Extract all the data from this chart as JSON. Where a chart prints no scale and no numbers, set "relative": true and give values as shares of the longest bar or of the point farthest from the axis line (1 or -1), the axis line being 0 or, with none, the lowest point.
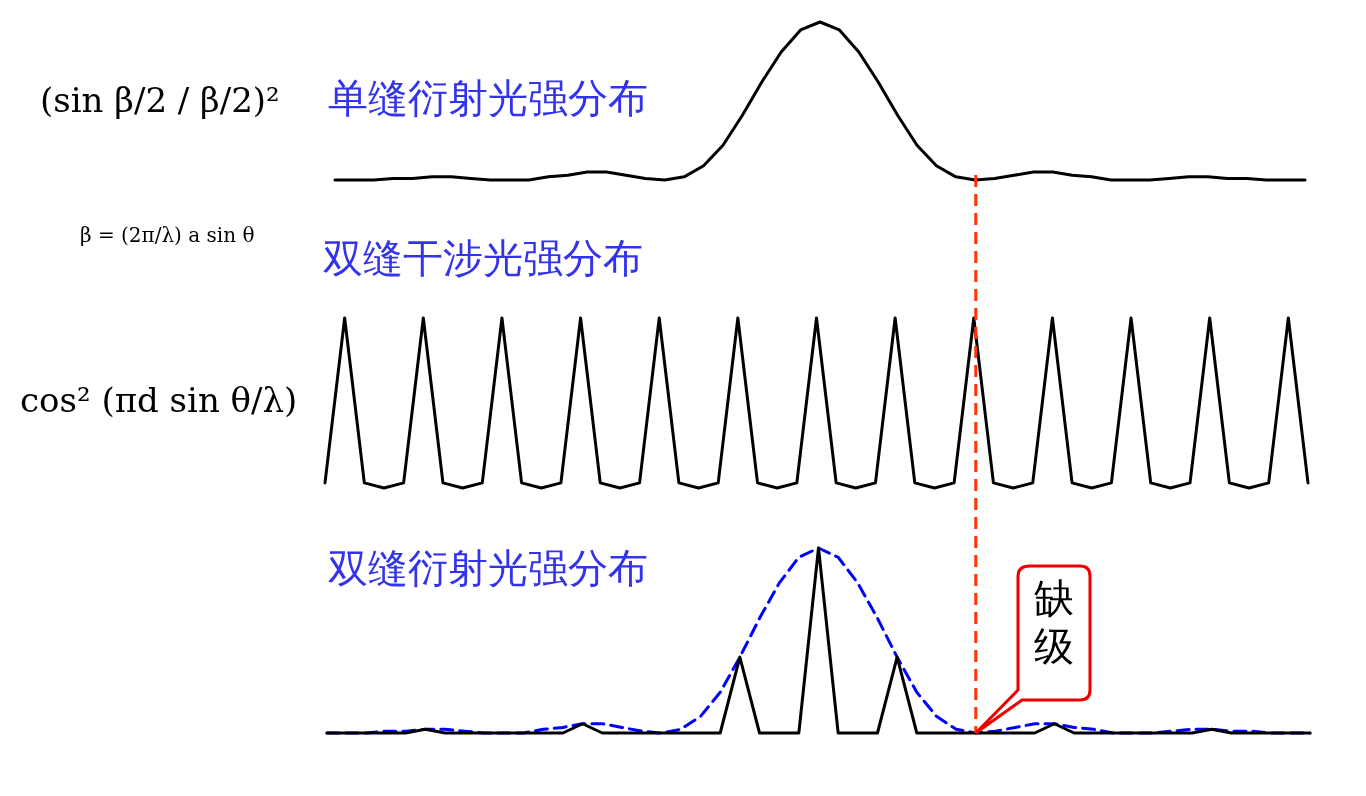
{
  "chart_data": [
    {
      "type": "line",
      "title": "单缝衍射光强分布",
      "relative": true,
      "tick_labels": false,
      "annotations": [
        "(sin β/2 / β/2)²",
        "β = (2π/λ) a sin θ"
      ],
      "categories": [
        null,
        null,
        null,
        null,
        null,
        null,
        null,
        null,
        null,
        null,
        null,
        null,
        null,
        null,
        null,
        null,
        null,
        null,
        null,
        null,
        null,
        null,
        null,
        null,
        null,
        null,
        null,
        null,
        null,
        null,
        null,
        null,
        null,
        null,
        null,
        null,
        null,
        null,
        null,
        null,
        null,
        null,
        null,
        null,
        null,
        null,
        null,
        null,
        null,
        null,
        null
      ],
      "series": [
        {
          "color": "#000000",
          "values": [
            0,
            0,
            0,
            0.01,
            0.01,
            0.02,
            0.02,
            0.01,
            0,
            0,
            0,
            0.02,
            0.03,
            0.05,
            0.05,
            0.03,
            0.01,
            0,
            0.02,
            0.09,
            0.22,
            0.41,
            0.62,
            0.81,
            0.95,
            1,
            0.95,
            0.81,
            0.62,
            0.41,
            0.22,
            0.09,
            0.02,
            0,
            0.01,
            0.03,
            0.05,
            0.05,
            0.03,
            0.02,
            0,
            0,
            0,
            0.01,
            0.02,
            0.02,
            0.01,
            0.01,
            0,
            0,
            0
          ]
        }
      ]
    },
    {
      "type": "line",
      "title": "双缝干涉光强分布",
      "relative": true,
      "tick_labels": false,
      "annotations": [
        "cos² (πd sin θ/λ)"
      ],
      "categories": [
        null,
        null,
        null,
        null,
        null,
        null,
        null,
        null,
        null,
        null,
        null,
        null,
        null,
        null,
        null,
        null,
        null,
        null,
        null,
        null,
        null,
        null,
        null,
        null,
        null,
        null,
        null,
        null,
        null,
        null,
        null,
        null,
        null,
        null,
        null,
        null,
        null,
        null,
        null,
        null,
        null,
        null,
        null,
        null,
        null,
        null,
        null,
        null,
        null,
        null,
        null
      ],
      "series": [
        {
          "color": "#000000",
          "values": [
            0.03,
            1,
            0.03,
            0,
            0.03,
            1,
            0.03,
            0,
            0.03,
            1,
            0.03,
            0,
            0.03,
            1,
            0.03,
            0,
            0.03,
            1,
            0.03,
            0,
            0.03,
            1,
            0.03,
            0,
            0.03,
            1,
            0.03,
            0,
            0.03,
            1,
            0.03,
            0,
            0.03,
            1,
            0.03,
            0,
            0.03,
            1,
            0.03,
            0,
            0.03,
            1,
            0.03,
            0,
            0.03,
            1,
            0.03,
            0,
            0.03,
            1,
            0.03
          ]
        }
      ]
    },
    {
      "type": "line",
      "title": "双缝衍射光强分布",
      "relative": true,
      "tick_labels": false,
      "annotations": [
        "缺级"
      ],
      "categories": [
        null,
        null,
        null,
        null,
        null,
        null,
        null,
        null,
        null,
        null,
        null,
        null,
        null,
        null,
        null,
        null,
        null,
        null,
        null,
        null,
        null,
        null,
        null,
        null,
        null,
        null,
        null,
        null,
        null,
        null,
        null,
        null,
        null,
        null,
        null,
        null,
        null,
        null,
        null,
        null,
        null,
        null,
        null,
        null,
        null,
        null,
        null,
        null,
        null,
        null,
        null
      ],
      "series": [
        {
          "color": "#0000ff",
          "line_style": "dashed",
          "values": [
            0,
            0,
            0,
            0.01,
            0.01,
            0.02,
            0.02,
            0.01,
            0,
            0,
            0,
            0.02,
            0.03,
            0.05,
            0.05,
            0.03,
            0.01,
            0,
            0.02,
            0.09,
            0.22,
            0.41,
            0.62,
            0.81,
            0.95,
            1,
            0.95,
            0.81,
            0.62,
            0.41,
            0.22,
            0.09,
            0.02,
            0,
            0.01,
            0.03,
            0.05,
            0.05,
            0.03,
            0.02,
            0,
            0,
            0,
            0.01,
            0.02,
            0.02,
            0.01,
            0.01,
            0,
            0,
            0
          ]
        },
        {
          "color": "#000000",
          "line_style": "solid",
          "values": [
            0,
            0,
            0,
            0,
            0,
            0.02,
            0,
            0,
            0,
            0,
            0,
            0,
            0,
            0.05,
            0,
            0,
            0,
            0,
            0,
            0,
            0,
            0.41,
            0,
            0,
            0,
            1,
            0,
            0,
            0,
            0.41,
            0,
            0,
            0,
            0,
            0,
            0,
            0,
            0.05,
            0,
            0,
            0,
            0,
            0,
            0,
            0,
            0.02,
            0,
            0,
            0,
            0,
            0
          ]
        }
      ]
    }
  ]
}
